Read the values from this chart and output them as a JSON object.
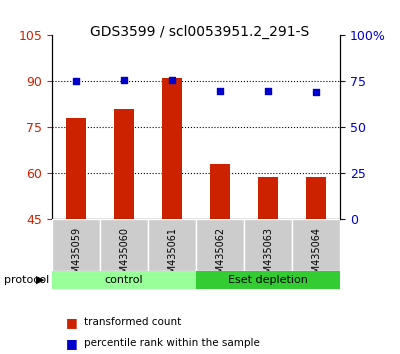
{
  "title": "GDS3599 / scl0053951.2_291-S",
  "samples": [
    "GSM435059",
    "GSM435060",
    "GSM435061",
    "GSM435062",
    "GSM435063",
    "GSM435064"
  ],
  "red_values": [
    78,
    81,
    91,
    63,
    59,
    59
  ],
  "blue_values": [
    75,
    76,
    76,
    70,
    70,
    69
  ],
  "ylim_left": [
    45,
    105
  ],
  "ylim_right": [
    0,
    100
  ],
  "yticks_left": [
    45,
    60,
    75,
    90,
    105
  ],
  "yticks_right": [
    0,
    25,
    50,
    75,
    100
  ],
  "yticklabels_right": [
    "0",
    "25",
    "50",
    "75",
    "100%"
  ],
  "grid_lines": [
    60,
    75,
    90
  ],
  "bar_color": "#CC2200",
  "dot_color": "#0000CC",
  "bar_width": 0.4,
  "groups": [
    {
      "label": "control",
      "samples": [
        0,
        1,
        2
      ],
      "color": "#99FF99"
    },
    {
      "label": "Eset depletion",
      "samples": [
        3,
        4,
        5
      ],
      "color": "#33CC33"
    }
  ],
  "protocol_label": "protocol",
  "legend_red": "transformed count",
  "legend_blue": "percentile rank within the sample",
  "tick_color_left": "#CC2200",
  "tick_color_right": "#0000CC",
  "background_color": "#ffffff",
  "xticklabel_bg": "#cccccc"
}
